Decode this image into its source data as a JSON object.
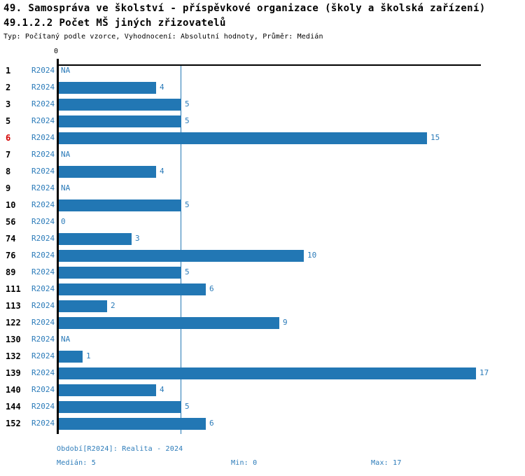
{
  "chart_data": {
    "type": "bar",
    "orientation": "horizontal",
    "title": "49. Samospráva ve školství - příspěvkové organizace (školy a školská zařízení)",
    "subtitle": "49.1.2.2 Počet MŠ jiných zřizovatelů",
    "meta_line": "Typ: Počítaný podle vzorce, Vyhodnocení: Absolutní hodnoty, Průměr: Medián",
    "series_label": "R2024",
    "categories": [
      "1",
      "2",
      "3",
      "5",
      "6",
      "7",
      "8",
      "9",
      "10",
      "56",
      "74",
      "76",
      "89",
      "111",
      "113",
      "122",
      "130",
      "132",
      "139",
      "140",
      "144",
      "152"
    ],
    "values": [
      null,
      4,
      5,
      5,
      15,
      null,
      4,
      null,
      5,
      0,
      3,
      10,
      5,
      6,
      2,
      9,
      null,
      1,
      17,
      4,
      5,
      6
    ],
    "value_labels": [
      "NA",
      "4",
      "5",
      "5",
      "15",
      "NA",
      "4",
      "NA",
      "5",
      "0",
      "3",
      "10",
      "5",
      "6",
      "2",
      "9",
      "NA",
      "1",
      "17",
      "4",
      "5",
      "6"
    ],
    "highlighted_category": "6",
    "axis": {
      "zero_tick_label": "0",
      "xlim": [
        0,
        17.2
      ],
      "median_line_at": 5,
      "value_axis_position": "top",
      "gridlines": false,
      "legend": "none"
    },
    "stats": {
      "period": "Období[R2024]: Realita - 2024",
      "median": "Medián: 5",
      "min": "Min: 0",
      "max": "Max: 17"
    },
    "colors": {
      "bar": "#2277b4",
      "text_blue": "#2b7bb9",
      "highlight_red": "#d40000",
      "axis_black": "#000000"
    }
  }
}
